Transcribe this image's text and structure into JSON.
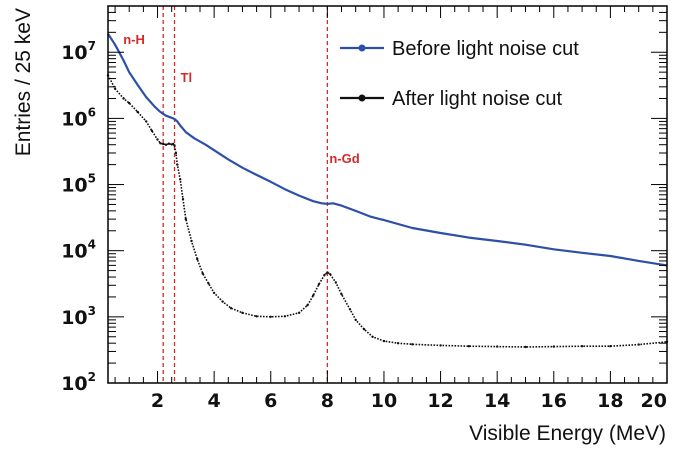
{
  "chart_data": {
    "type": "line",
    "title": "",
    "xlabel": "Visible Energy (MeV)",
    "ylabel": "Entries / 25 keV",
    "xlim": [
      0.25,
      20
    ],
    "ylim": [
      100,
      50000000
    ],
    "yscale": "log",
    "grid": false,
    "legend_position": "top-right",
    "x_ticks": [
      2,
      4,
      6,
      8,
      10,
      12,
      14,
      16,
      18,
      20
    ],
    "y_ticks": [
      {
        "value": 100,
        "base": "10",
        "exp": "2"
      },
      {
        "value": 1000,
        "base": "10",
        "exp": "3"
      },
      {
        "value": 10000,
        "base": "10",
        "exp": "4"
      },
      {
        "value": 100000,
        "base": "10",
        "exp": "5"
      },
      {
        "value": 1000000,
        "base": "10",
        "exp": "6"
      },
      {
        "value": 10000000,
        "base": "10",
        "exp": "7"
      }
    ],
    "series": [
      {
        "name": "Before light noise cut",
        "color": "#2e4fa8",
        "style": "line",
        "x": [
          0.25,
          0.5,
          0.8,
          1.0,
          1.3,
          1.6,
          1.9,
          2.1,
          2.3,
          2.5,
          2.6,
          2.7,
          2.8,
          3.0,
          3.3,
          3.7,
          4.0,
          4.5,
          5.0,
          5.5,
          6.0,
          6.5,
          7.0,
          7.5,
          7.8,
          8.0,
          8.2,
          8.5,
          9.0,
          9.5,
          10.0,
          11.0,
          12.0,
          13.0,
          14.0,
          15.0,
          16.0,
          17.0,
          18.0,
          19.0,
          20.0
        ],
        "values": [
          19000000,
          13000000,
          7500000,
          5000000,
          3200000,
          2100000,
          1500000,
          1250000,
          1100000,
          1020000,
          980000,
          900000,
          780000,
          620000,
          500000,
          400000,
          330000,
          240000,
          180000,
          140000,
          110000,
          85000,
          68000,
          56000,
          52000,
          51000,
          52000,
          48000,
          40000,
          33000,
          29000,
          22000,
          18500,
          15800,
          14000,
          12300,
          10500,
          9300,
          8300,
          7000,
          6000
        ]
      },
      {
        "name": "After light noise cut",
        "color": "#111111",
        "style": "points",
        "x": [
          0.25,
          0.5,
          0.8,
          1.0,
          1.3,
          1.6,
          1.8,
          2.0,
          2.1,
          2.2,
          2.3,
          2.4,
          2.5,
          2.55,
          2.6,
          2.65,
          2.7,
          2.8,
          2.9,
          3.0,
          3.2,
          3.4,
          3.6,
          3.8,
          4.0,
          4.3,
          4.6,
          5.0,
          5.5,
          6.0,
          6.5,
          7.0,
          7.3,
          7.5,
          7.7,
          7.9,
          8.0,
          8.1,
          8.3,
          8.5,
          8.8,
          9.0,
          9.3,
          9.6,
          10.0,
          10.5,
          11.0,
          12.0,
          13.0,
          14.0,
          15.0,
          16.0,
          17.0,
          18.0,
          19.0,
          20.0
        ],
        "values": [
          4500000,
          2800000,
          2000000,
          1700000,
          1250000,
          900000,
          650000,
          480000,
          420000,
          410000,
          400000,
          415000,
          405000,
          410000,
          390000,
          300000,
          200000,
          120000,
          60000,
          30000,
          14000,
          7500,
          4500,
          3200,
          2300,
          1700,
          1350,
          1150,
          1020,
          1000,
          1020,
          1150,
          1500,
          2100,
          3100,
          4300,
          4700,
          4400,
          3300,
          2200,
          1300,
          900,
          650,
          500,
          430,
          400,
          385,
          370,
          360,
          355,
          350,
          355,
          360,
          360,
          380,
          420
        ]
      }
    ],
    "annotations": [
      {
        "label": "n-H",
        "x": 2.2,
        "color": "#d42a2a"
      },
      {
        "label": "Tl",
        "x": 2.6,
        "color": "#d42a2a"
      },
      {
        "label": "n-Gd",
        "x": 8.0,
        "color": "#d42a2a"
      }
    ]
  }
}
